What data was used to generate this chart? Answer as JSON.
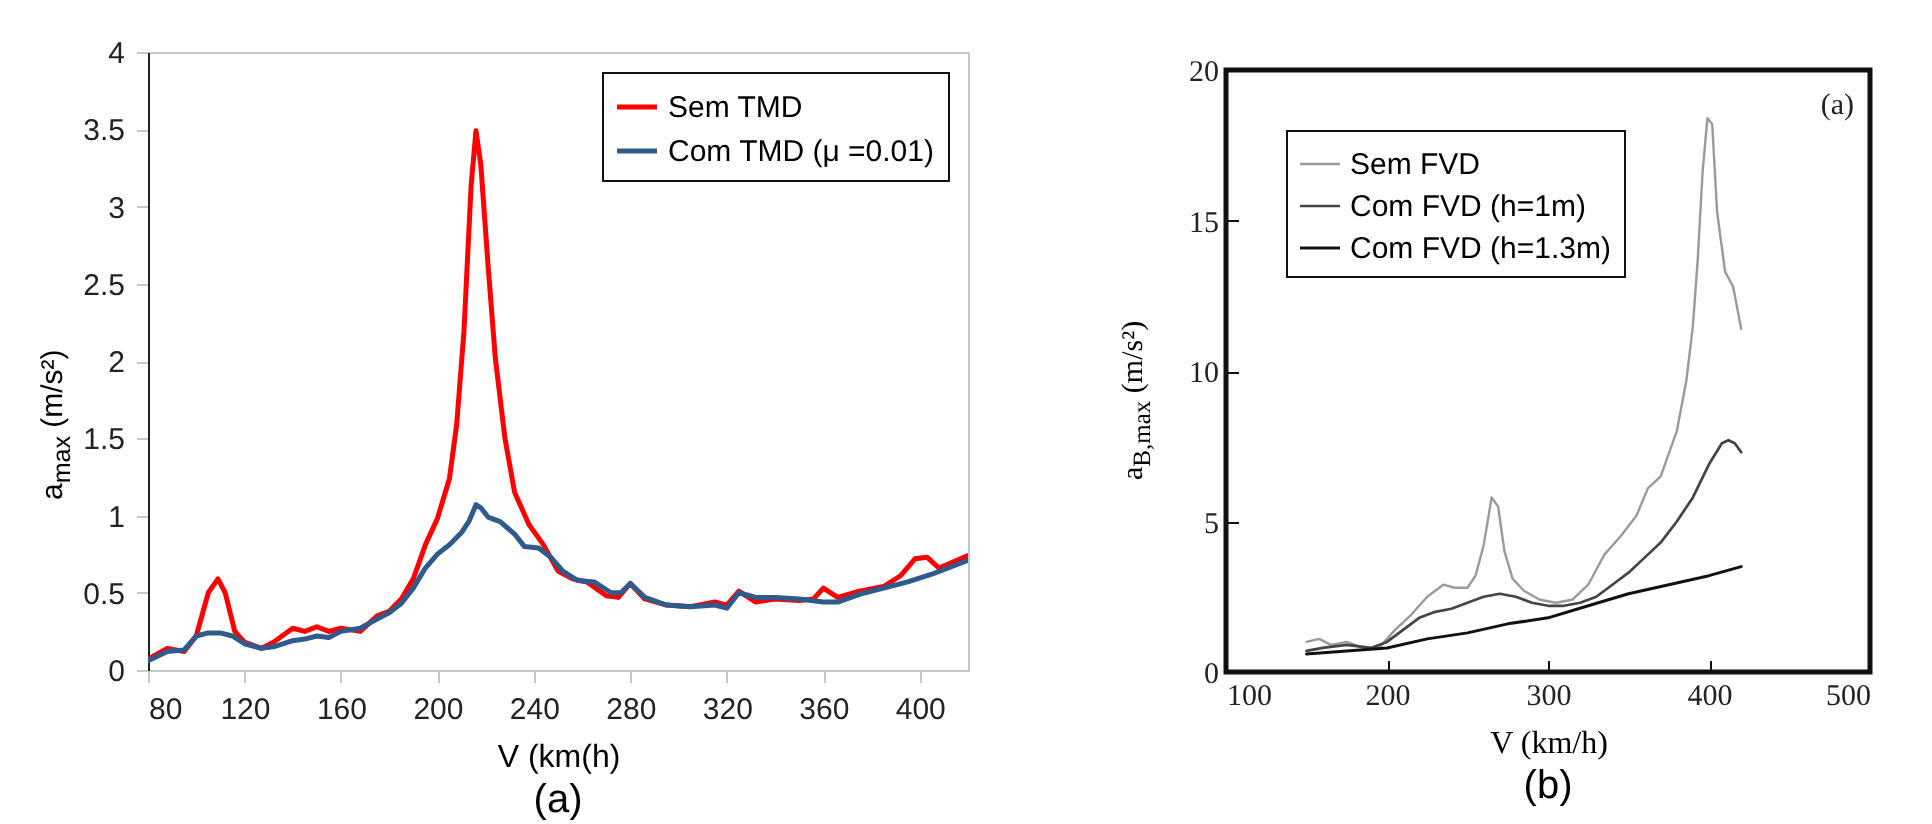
{
  "chart_data": [
    {
      "type": "line",
      "title": "(a)",
      "xlabel": "V (km(h)",
      "ylabel": "a$_{max}$ (m/s²)",
      "xlim": [
        80,
        420
      ],
      "xticks": [
        80,
        120,
        160,
        200,
        240,
        280,
        320,
        360,
        400
      ],
      "ylim": [
        0,
        4
      ],
      "yticks": [
        0,
        0.5,
        1,
        1.5,
        2,
        2.5,
        3,
        3.5,
        4
      ],
      "grid": false,
      "legend": "top right",
      "series": [
        {
          "name": "Sem TMD",
          "color": "#ff0000",
          "x": [
            80,
            88,
            95,
            100,
            105,
            109,
            112,
            116,
            120,
            127,
            132,
            140,
            145,
            150,
            155,
            160,
            168,
            175,
            180,
            185,
            190,
            195,
            200,
            205,
            208,
            211,
            214,
            216,
            218,
            221,
            224,
            228,
            232,
            238,
            244,
            250,
            256,
            262,
            270,
            275,
            280,
            286,
            295,
            305,
            315,
            320,
            325,
            332,
            340,
            350,
            356,
            360,
            366,
            375,
            385,
            392,
            398,
            403,
            408,
            420
          ],
          "values": [
            0.07,
            0.14,
            0.12,
            0.22,
            0.5,
            0.59,
            0.5,
            0.25,
            0.18,
            0.14,
            0.18,
            0.27,
            0.25,
            0.28,
            0.25,
            0.27,
            0.25,
            0.35,
            0.38,
            0.46,
            0.59,
            0.81,
            0.98,
            1.24,
            1.59,
            2.19,
            3.14,
            3.49,
            3.27,
            2.62,
            2.02,
            1.5,
            1.15,
            0.94,
            0.81,
            0.64,
            0.59,
            0.57,
            0.48,
            0.47,
            0.56,
            0.46,
            0.42,
            0.41,
            0.44,
            0.42,
            0.51,
            0.44,
            0.46,
            0.45,
            0.46,
            0.53,
            0.47,
            0.51,
            0.54,
            0.61,
            0.72,
            0.73,
            0.66,
            0.74
          ]
        },
        {
          "name": "Com TMD (μ =0.01)",
          "color": "#2e5a8c",
          "x": [
            80,
            88,
            95,
            100,
            105,
            110,
            115,
            120,
            127,
            132,
            140,
            145,
            150,
            155,
            160,
            168,
            175,
            180,
            185,
            190,
            195,
            200,
            205,
            210,
            213,
            216,
            218,
            221,
            226,
            232,
            236,
            242,
            247,
            252,
            258,
            265,
            272,
            276,
            280,
            286,
            295,
            305,
            315,
            320,
            325,
            332,
            340,
            350,
            360,
            366,
            375,
            385,
            395,
            405,
            420
          ],
          "values": [
            0.06,
            0.12,
            0.13,
            0.22,
            0.24,
            0.24,
            0.22,
            0.17,
            0.14,
            0.15,
            0.19,
            0.2,
            0.22,
            0.21,
            0.25,
            0.27,
            0.33,
            0.37,
            0.43,
            0.53,
            0.66,
            0.75,
            0.81,
            0.89,
            0.96,
            1.07,
            1.05,
            0.99,
            0.96,
            0.88,
            0.8,
            0.79,
            0.73,
            0.64,
            0.58,
            0.57,
            0.5,
            0.5,
            0.56,
            0.47,
            0.42,
            0.41,
            0.42,
            0.4,
            0.5,
            0.47,
            0.47,
            0.46,
            0.44,
            0.44,
            0.49,
            0.53,
            0.57,
            0.62,
            0.71
          ]
        }
      ]
    },
    {
      "type": "line",
      "title": "(b)",
      "xlabel": "V (km/h)",
      "ylabel": "a$_{B,max}$ (m/s²)",
      "xlim": [
        100,
        500
      ],
      "xticks": [
        100,
        200,
        300,
        400,
        500
      ],
      "ylim": [
        0,
        20
      ],
      "yticks": [
        0,
        5,
        10,
        15,
        20
      ],
      "grid": false,
      "legend": "top left",
      "annotations": [
        "(a)"
      ],
      "series": [
        {
          "name": "Sem FVD",
          "color": "#9a9a9a",
          "x": [
            150,
            158,
            165,
            175,
            185,
            195,
            205,
            215,
            225,
            235,
            242,
            250,
            255,
            260,
            265,
            269,
            273,
            278,
            285,
            295,
            305,
            315,
            325,
            335,
            345,
            355,
            362,
            370,
            380,
            386,
            390,
            393,
            396,
            399,
            402,
            405,
            410,
            415,
            420
          ],
          "values": [
            1.0,
            1.1,
            0.9,
            1.0,
            0.8,
            0.8,
            1.4,
            1.9,
            2.5,
            2.9,
            2.8,
            2.8,
            3.2,
            4.2,
            5.8,
            5.5,
            4.0,
            3.1,
            2.7,
            2.4,
            2.3,
            2.4,
            2.9,
            3.9,
            4.5,
            5.2,
            6.1,
            6.5,
            8.0,
            9.7,
            11.5,
            13.7,
            16.6,
            18.4,
            18.2,
            15.3,
            13.3,
            12.8,
            11.4
          ]
        },
        {
          "name": "Com FVD (h=1m)",
          "color": "#444444",
          "x": [
            150,
            160,
            175,
            190,
            200,
            210,
            220,
            230,
            240,
            250,
            260,
            270,
            280,
            290,
            300,
            310,
            320,
            330,
            340,
            350,
            360,
            370,
            380,
            390,
            400,
            408,
            412,
            416,
            420
          ],
          "values": [
            0.7,
            0.8,
            0.9,
            0.8,
            1.0,
            1.4,
            1.8,
            2.0,
            2.1,
            2.3,
            2.5,
            2.6,
            2.5,
            2.3,
            2.2,
            2.2,
            2.3,
            2.5,
            2.9,
            3.3,
            3.8,
            4.3,
            5.0,
            5.8,
            6.9,
            7.6,
            7.7,
            7.6,
            7.3
          ]
        },
        {
          "name": "Com FVD (h=1.3m)",
          "color": "#111111",
          "x": [
            150,
            175,
            200,
            225,
            250,
            275,
            300,
            325,
            350,
            375,
            400,
            420
          ],
          "values": [
            0.6,
            0.7,
            0.8,
            1.1,
            1.3,
            1.6,
            1.8,
            2.2,
            2.6,
            2.9,
            3.2,
            3.5
          ]
        }
      ]
    }
  ]
}
